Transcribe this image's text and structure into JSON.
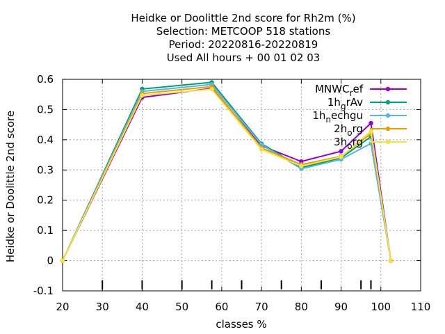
{
  "chart_data": {
    "type": "line",
    "title_lines": [
      "Heidke or Doolittle 2nd score  for Rh2m (%)",
      "Selection: METCOOP    518 stations",
      "Period: 20220816-20220819",
      "Used  All hours  + 00 01 02 03"
    ],
    "xlabel": "classes %",
    "ylabel": "Heidke or Doolittle 2nd score",
    "xlim": [
      20,
      110
    ],
    "ylim": [
      -0.1,
      0.6
    ],
    "xticks": [
      20,
      30,
      40,
      50,
      60,
      70,
      80,
      90,
      100,
      110
    ],
    "yticks": [
      -0.1,
      0,
      0.1,
      0.2,
      0.3,
      0.4,
      0.5,
      0.6
    ],
    "ytick_labels": [
      "-0.1",
      "0",
      "0.1",
      "0.2",
      "0.3",
      "0.4",
      "0.5",
      "0.6"
    ],
    "class_markers": [
      30,
      40,
      50,
      57.5,
      65,
      75,
      85,
      95,
      97.5
    ],
    "grid": true,
    "legend_position": "top-right",
    "series": [
      {
        "name": "MNWC",
        "name_sub": "r",
        "name_rest": "ef",
        "color": "#9400d3",
        "x": [
          20,
          40,
          57.5,
          70,
          80,
          90,
          97.5,
          102.5
        ],
        "values": [
          0,
          0.54,
          0.57,
          0.38,
          0.328,
          0.362,
          0.455,
          0
        ]
      },
      {
        "name": "1h",
        "name_sub": "g",
        "name_rest": "rAv",
        "color": "#009e73",
        "x": [
          20,
          40,
          57.5,
          70,
          80,
          90,
          97.5,
          102.5
        ],
        "values": [
          0,
          0.568,
          0.59,
          0.387,
          0.308,
          0.34,
          0.41,
          0
        ]
      },
      {
        "name": "1h",
        "name_sub": "n",
        "name_rest": "echgu",
        "color": "#56b4e9",
        "x": [
          20,
          40,
          57.5,
          70,
          80,
          90,
          97.5,
          102.5
        ],
        "values": [
          0,
          0.56,
          0.583,
          0.384,
          0.304,
          0.335,
          0.388,
          0
        ]
      },
      {
        "name": "2h",
        "name_sub": "o",
        "name_rest": "rg",
        "color": "#e69f00",
        "x": [
          20,
          40,
          57.5,
          70,
          80,
          90,
          97.5,
          102.5
        ],
        "values": [
          0,
          0.553,
          0.576,
          0.373,
          0.318,
          0.345,
          0.42,
          0
        ]
      },
      {
        "name": "3h",
        "name_sub": "o",
        "name_rest": "rg",
        "color": "#f0e442",
        "x": [
          20,
          40,
          57.5,
          70,
          80,
          90,
          97.5,
          102.5
        ],
        "values": [
          0,
          0.547,
          0.567,
          0.368,
          0.313,
          0.343,
          0.428,
          0
        ]
      }
    ]
  }
}
